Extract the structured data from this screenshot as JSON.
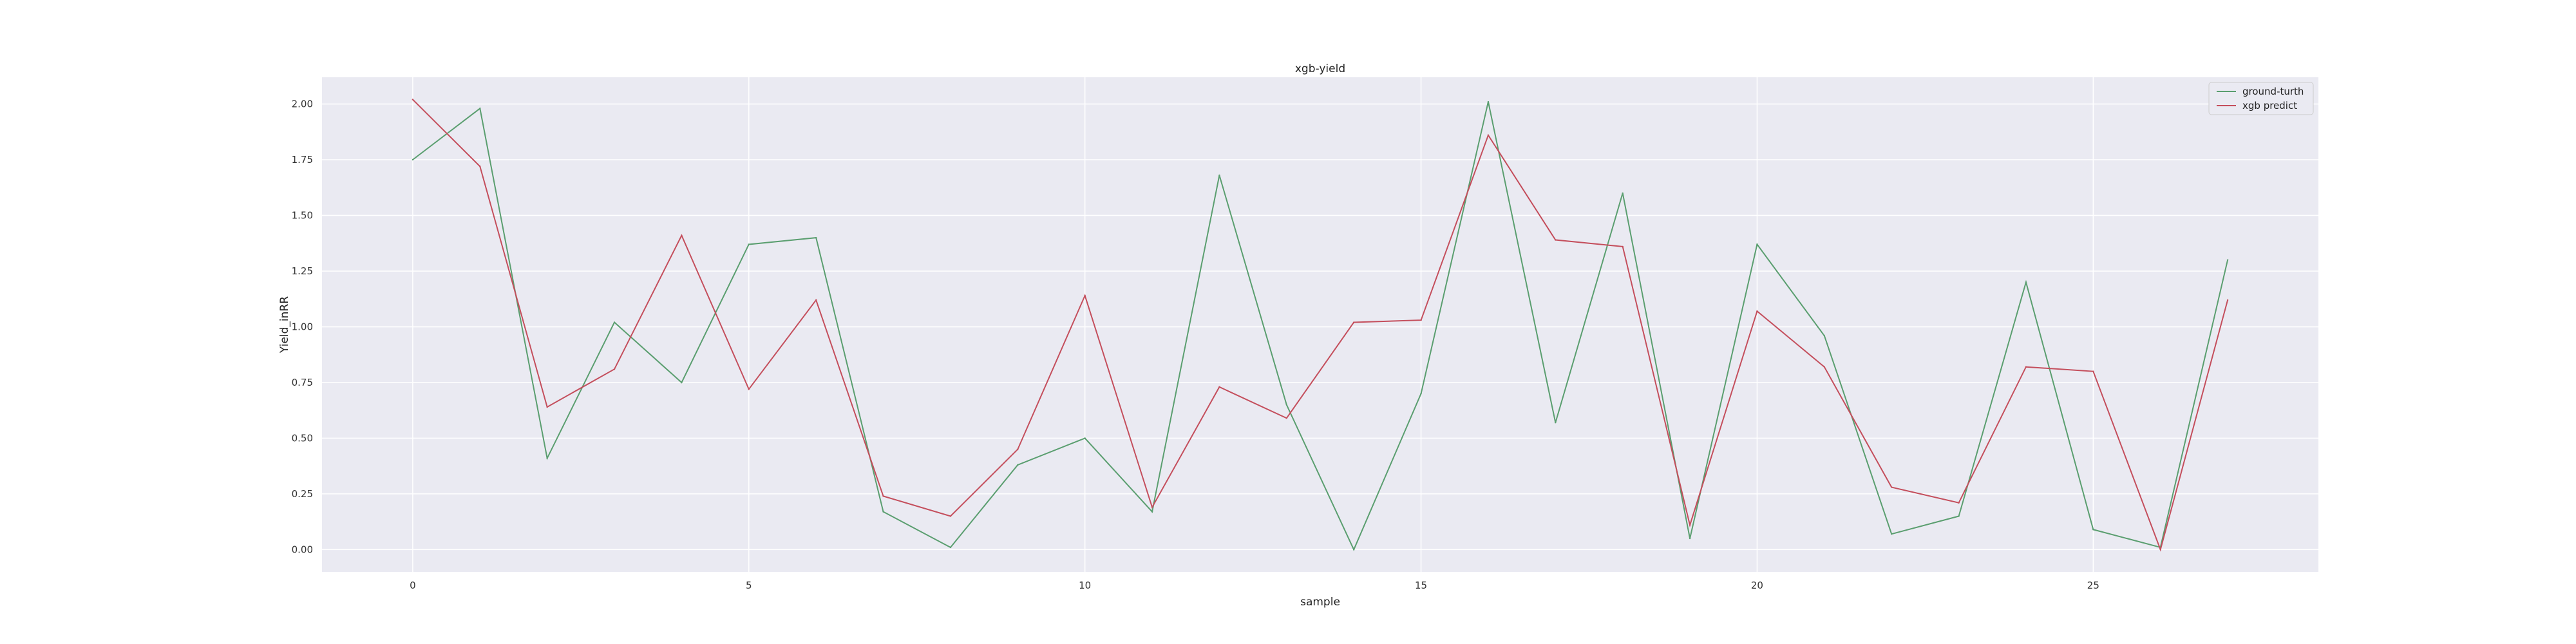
{
  "chart_data": {
    "type": "line",
    "title": "xgb-yield",
    "xlabel": "sample",
    "ylabel": "Yield_inRR",
    "xlim": [
      -1.35,
      28.35
    ],
    "ylim": [
      -0.1,
      2.12
    ],
    "xticks": [
      0,
      5,
      10,
      15,
      20,
      25
    ],
    "yticks": [
      0.0,
      0.25,
      0.5,
      0.75,
      1.0,
      1.25,
      1.5,
      1.75,
      2.0
    ],
    "ytick_labels": [
      "0.00",
      "0.25",
      "0.50",
      "0.75",
      "1.00",
      "1.25",
      "1.50",
      "1.75",
      "2.00"
    ],
    "grid": true,
    "legend_position": "top-right",
    "x": [
      0,
      1,
      2,
      3,
      4,
      5,
      6,
      7,
      8,
      9,
      10,
      11,
      12,
      13,
      14,
      15,
      16,
      17,
      18,
      19,
      20,
      21,
      22,
      23,
      24,
      25,
      26,
      27
    ],
    "series": [
      {
        "name": "ground-turth",
        "color": "#5a9e6f",
        "values": [
          1.75,
          1.98,
          0.41,
          1.02,
          0.75,
          1.37,
          1.4,
          0.17,
          0.01,
          0.38,
          0.5,
          0.17,
          1.68,
          0.65,
          0.0,
          0.7,
          2.01,
          0.57,
          1.6,
          0.05,
          1.37,
          0.96,
          0.07,
          0.15,
          1.2,
          0.09,
          0.01,
          1.3
        ]
      },
      {
        "name": "xgb predict",
        "color": "#c44e5c",
        "values": [
          2.02,
          1.72,
          0.64,
          0.81,
          1.41,
          0.72,
          1.12,
          0.24,
          0.15,
          0.45,
          1.14,
          0.19,
          0.73,
          0.59,
          1.02,
          1.03,
          1.86,
          1.39,
          1.36,
          0.11,
          1.07,
          0.82,
          0.28,
          0.21,
          0.82,
          0.8,
          0.0,
          1.12
        ]
      }
    ]
  }
}
